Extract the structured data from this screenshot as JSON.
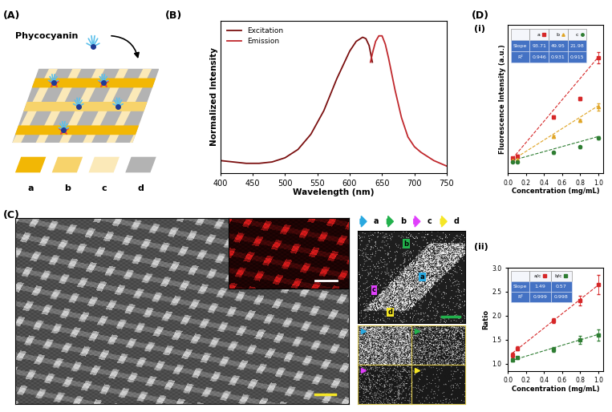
{
  "schematic": {
    "label": "(A)",
    "molecule": "Phycocyanin",
    "layers": [
      {
        "name": "a",
        "color": "#f2b705"
      },
      {
        "name": "b",
        "color": "#f7d36b"
      },
      {
        "name": "c",
        "color": "#fbe9b8"
      },
      {
        "name": "d",
        "color": "#b3b3b3"
      }
    ]
  },
  "micrograph": {
    "label": "(C)",
    "arrow_legend": [
      {
        "name": "a",
        "color": "#29a8e0"
      },
      {
        "name": "b",
        "color": "#22b14c"
      },
      {
        "name": "c",
        "color": "#e040fb"
      },
      {
        "name": "d",
        "color": "#f5e626"
      }
    ]
  },
  "panel_D_label": "(D)",
  "chart_data": [
    {
      "type": "line",
      "label": "(B)",
      "x_label": "Wavelength (nm)",
      "y_label": "Normalized Intensity",
      "xlim": [
        400,
        750
      ],
      "xticks": [
        400,
        450,
        500,
        550,
        600,
        650,
        700,
        750
      ],
      "ylim": [
        0,
        1.1
      ],
      "yticks": [],
      "tick_labels": "x",
      "grid": false,
      "legend": "upper left",
      "series": [
        {
          "name": "Excitation",
          "color": "#7b1010",
          "line_style": "solid",
          "x": [
            400,
            420,
            440,
            460,
            480,
            500,
            520,
            540,
            560,
            580,
            600,
            610,
            620,
            625,
            630,
            635
          ],
          "values": [
            0.09,
            0.08,
            0.07,
            0.07,
            0.08,
            0.11,
            0.17,
            0.28,
            0.45,
            0.68,
            0.88,
            0.95,
            0.98,
            0.97,
            0.92,
            0.8
          ]
        },
        {
          "name": "Emission",
          "color": "#c0282d",
          "line_style": "solid",
          "x": [
            632,
            636,
            640,
            645,
            650,
            655,
            660,
            670,
            680,
            690,
            700,
            710,
            720,
            730,
            740,
            750
          ],
          "values": [
            0.8,
            0.88,
            0.95,
            0.99,
            0.99,
            0.93,
            0.83,
            0.6,
            0.4,
            0.26,
            0.19,
            0.15,
            0.12,
            0.09,
            0.07,
            0.05
          ]
        }
      ]
    },
    {
      "type": "scatter",
      "label": "(i)",
      "x_label": "Concentration (mg/mL)",
      "y_label": "Fluorescence Intensity (a.u.)",
      "xlim": [
        0,
        1.05
      ],
      "xticks": [
        {
          "value": 0,
          "label": "0.0"
        },
        {
          "value": 0.2,
          "label": "0.2"
        },
        {
          "value": 0.4,
          "label": "0.4"
        },
        {
          "value": 0.6,
          "label": "0.6"
        },
        {
          "value": 0.8,
          "label": "0.8"
        },
        {
          "value": 1.0,
          "label": "1.0"
        }
      ],
      "ylim": [
        0,
        130
      ],
      "yticks": [],
      "tick_labels": "x",
      "grid": false,
      "series": [
        {
          "name": "a",
          "color": "#d62728",
          "marker": "square",
          "x": [
            0.05,
            0.1,
            0.5,
            0.8,
            1.0
          ],
          "values": [
            13,
            15,
            49,
            65,
            101
          ],
          "errors": [
            1,
            1,
            1.5,
            1.5,
            5
          ],
          "fit": {
            "x": [
              0.05,
              1.0
            ],
            "values": [
              12.7,
              101.7
            ],
            "line_style": "dashed"
          }
        },
        {
          "name": "b",
          "color": "#e0a526",
          "marker": "triangle",
          "x": [
            0.05,
            0.1,
            0.5,
            0.8,
            1.0
          ],
          "values": [
            11,
            12,
            32,
            46,
            58
          ],
          "errors": [
            1,
            1,
            1,
            1,
            3
          ],
          "fit": {
            "x": [
              0.05,
              1.0
            ],
            "values": [
              11.5,
              59
            ],
            "line_style": "dashed"
          }
        },
        {
          "name": "c",
          "color": "#2e7d32",
          "marker": "circle",
          "x": [
            0.05,
            0.1,
            0.5,
            0.8,
            1.0
          ],
          "values": [
            10,
            10,
            18,
            23,
            31
          ],
          "errors": [
            1,
            1,
            1,
            1,
            1.5
          ],
          "fit": {
            "x": [
              0.05,
              1.0
            ],
            "values": [
              11.1,
              32
            ],
            "line_style": "dashed"
          }
        }
      ],
      "table": {
        "columns": [
          "a",
          "b",
          "c"
        ],
        "rows": [
          {
            "label": "Slope",
            "values": [
              93.71,
              49.95,
              21.98
            ]
          },
          {
            "label": "R²",
            "values": [
              0.946,
              0.931,
              0.915
            ]
          }
        ]
      }
    },
    {
      "type": "scatter",
      "label": "(ii)",
      "x_label": "Concentration (mg/mL)",
      "y_label": "Ratio",
      "xlim": [
        0,
        1.05
      ],
      "xticks": [
        {
          "value": 0,
          "label": "0.0"
        },
        {
          "value": 0.2,
          "label": "0.2"
        },
        {
          "value": 0.4,
          "label": "0.4"
        },
        {
          "value": 0.6,
          "label": "0.6"
        },
        {
          "value": 0.8,
          "label": "0.8"
        },
        {
          "value": 1.0,
          "label": "1.0"
        }
      ],
      "ylim": [
        0.85,
        3.0
      ],
      "yticks": [
        {
          "value": 1.0,
          "label": "1.0"
        },
        {
          "value": 1.5,
          "label": "1.5"
        },
        {
          "value": 2.0,
          "label": "2.0"
        },
        {
          "value": 2.5,
          "label": "2.5"
        },
        {
          "value": 3.0,
          "label": "3.0"
        }
      ],
      "grid": false,
      "series": [
        {
          "name": "a/c",
          "color": "#d62728",
          "marker": "square",
          "x": [
            0.05,
            0.1,
            0.5,
            0.8,
            1.0
          ],
          "values": [
            1.18,
            1.32,
            1.9,
            2.32,
            2.65
          ],
          "errors": [
            0.05,
            0.05,
            0.05,
            0.1,
            0.2
          ],
          "fit": {
            "x": [
              0.05,
              1.0
            ],
            "values": [
              1.22,
              2.64
            ],
            "line_style": "dashed"
          }
        },
        {
          "name": "b/c",
          "color": "#2e7d32",
          "marker": "square",
          "x": [
            0.05,
            0.1,
            0.5,
            0.8,
            1.0
          ],
          "values": [
            1.07,
            1.12,
            1.3,
            1.5,
            1.6
          ],
          "errors": [
            0.03,
            0.03,
            0.05,
            0.08,
            0.12
          ],
          "fit": {
            "x": [
              0.05,
              1.0
            ],
            "values": [
              1.07,
              1.61
            ],
            "line_style": "dashed"
          }
        }
      ],
      "table": {
        "columns": [
          "a/c",
          "b/c"
        ],
        "rows": [
          {
            "label": "Slope",
            "values": [
              1.49,
              0.57
            ]
          },
          {
            "label": "R²",
            "values": [
              0.999,
              0.998
            ]
          }
        ]
      }
    }
  ]
}
